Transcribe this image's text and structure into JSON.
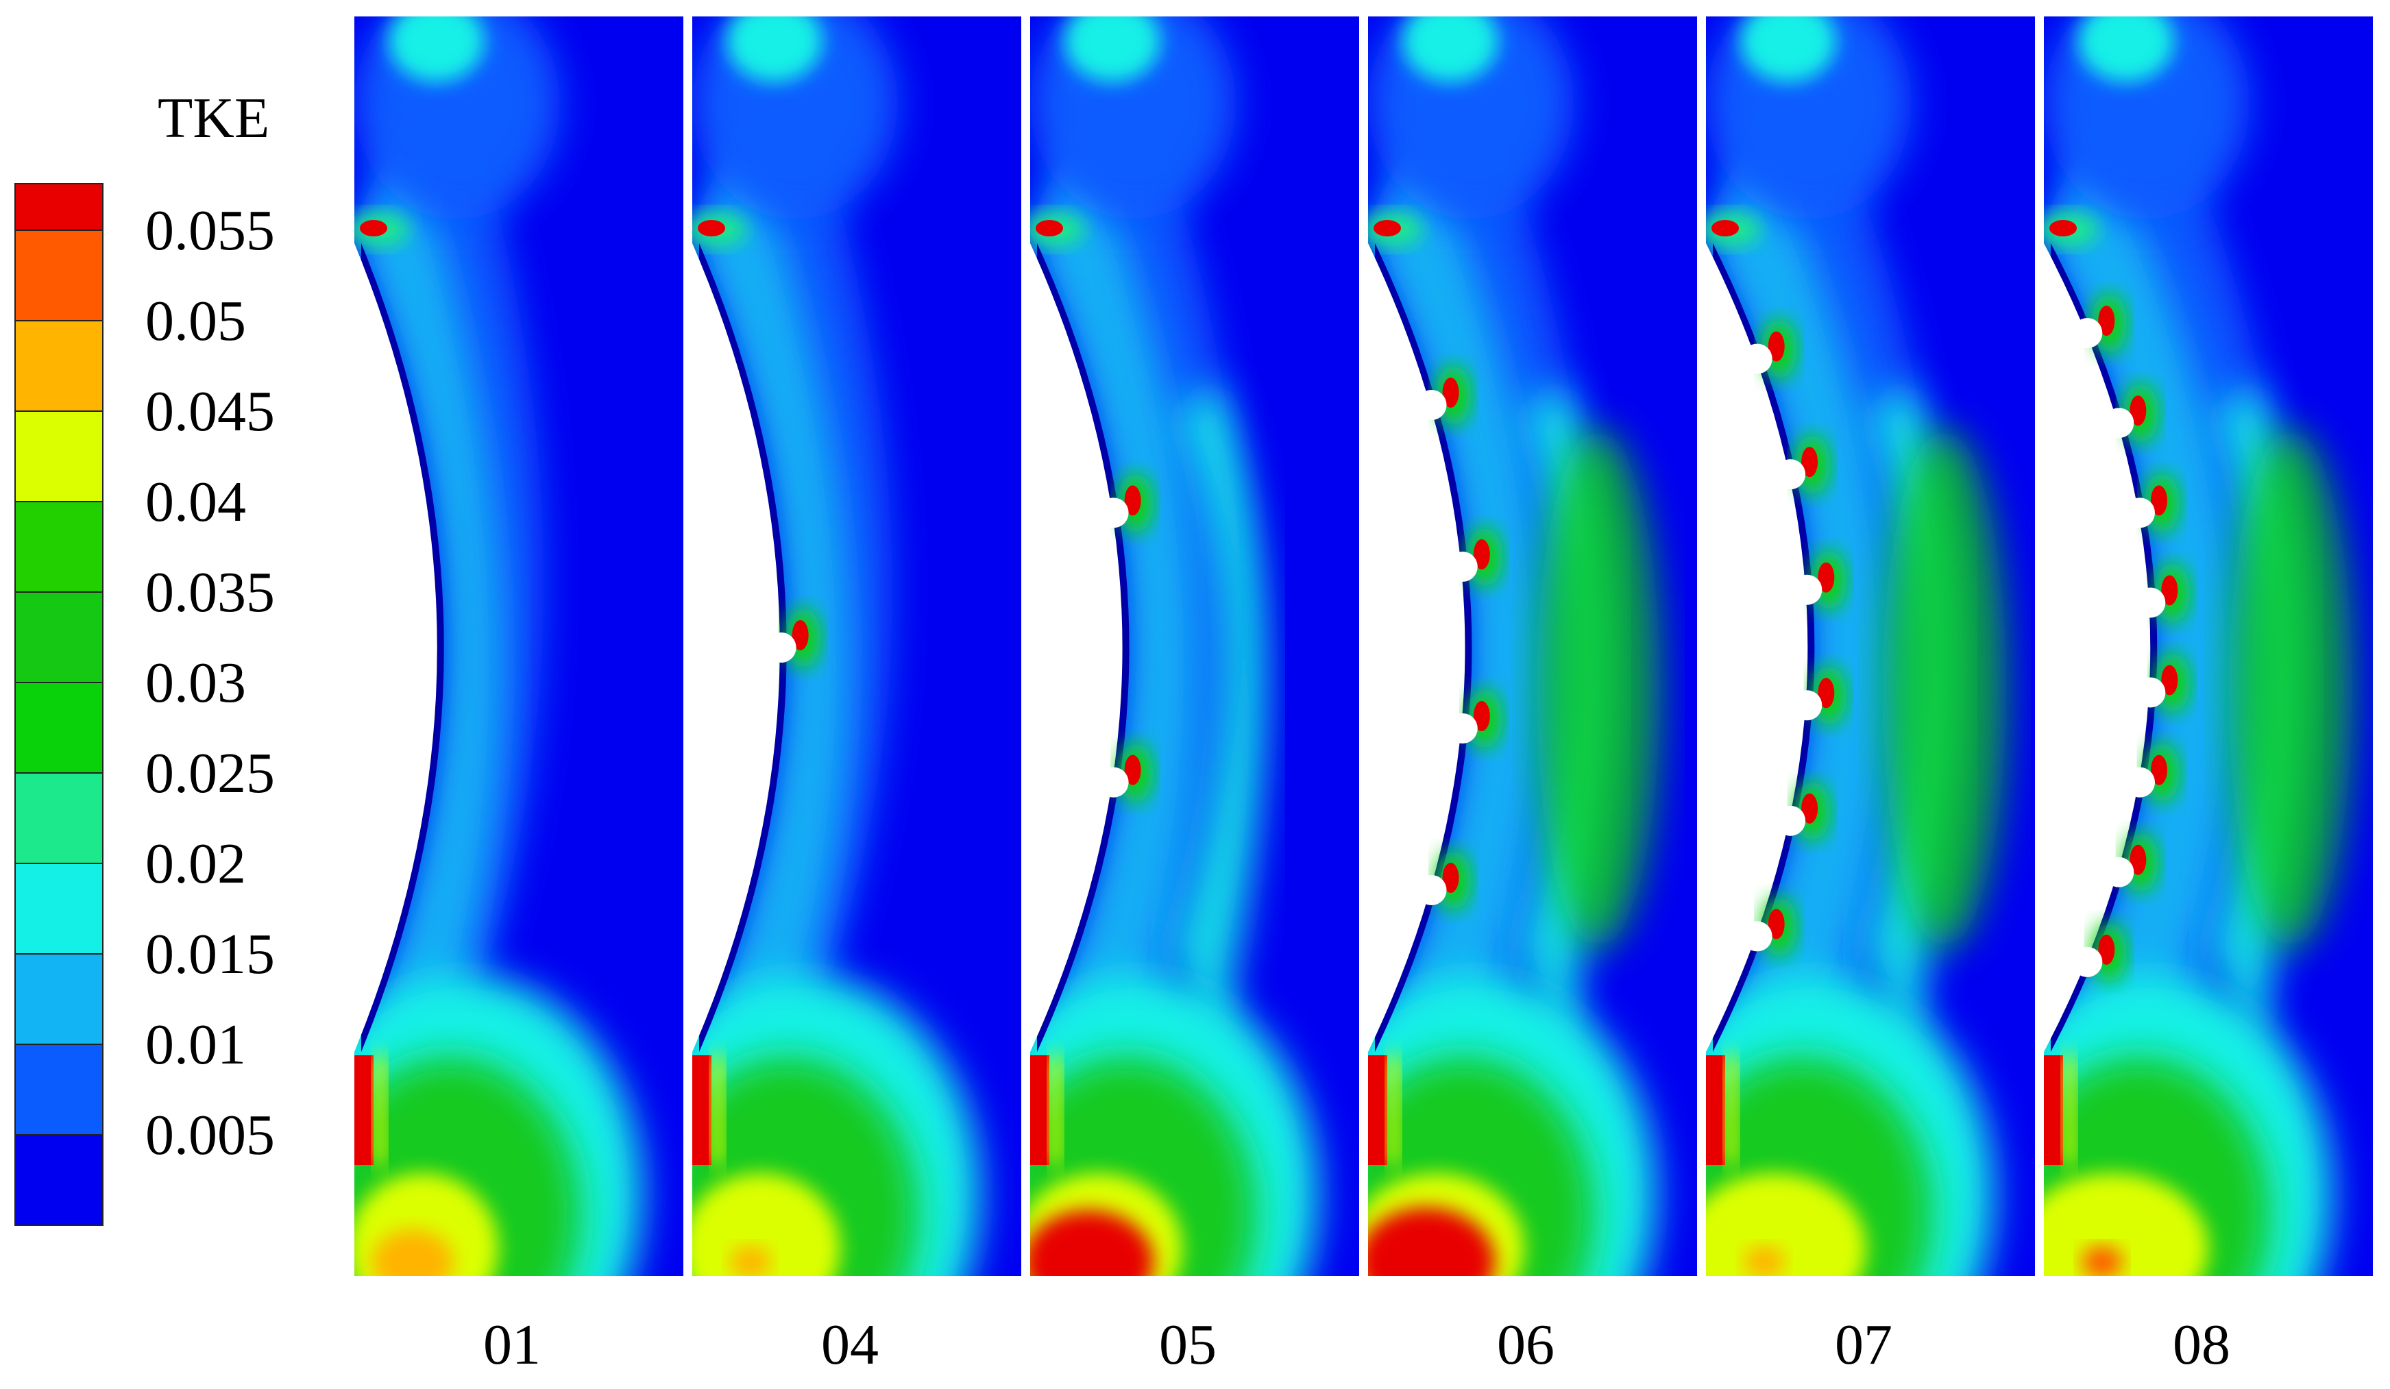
{
  "legend": {
    "title": "TKE",
    "levels": [
      "0.055",
      "0.05",
      "0.045",
      "0.04",
      "0.035",
      "0.03",
      "0.025",
      "0.02",
      "0.015",
      "0.01",
      "0.005"
    ],
    "colors": [
      "#e80000",
      "#ff5a00",
      "#ffb400",
      "#dcff00",
      "#22d000",
      "#14c814",
      "#0ad20a",
      "#1ce88c",
      "#14f0e6",
      "#12b4f4",
      "#0a5cff",
      "#0000f0"
    ]
  },
  "panels": [
    {
      "label": "01",
      "bumps": 0
    },
    {
      "label": "04",
      "bumps": 1
    },
    {
      "label": "05",
      "bumps": 2
    },
    {
      "label": "06",
      "bumps": 4
    },
    {
      "label": "07",
      "bumps": 6
    },
    {
      "label": "08",
      "bumps": 8
    }
  ],
  "colors": {
    "background": "#ffffff",
    "field": "#0000f0",
    "blade": "#ffffff"
  }
}
